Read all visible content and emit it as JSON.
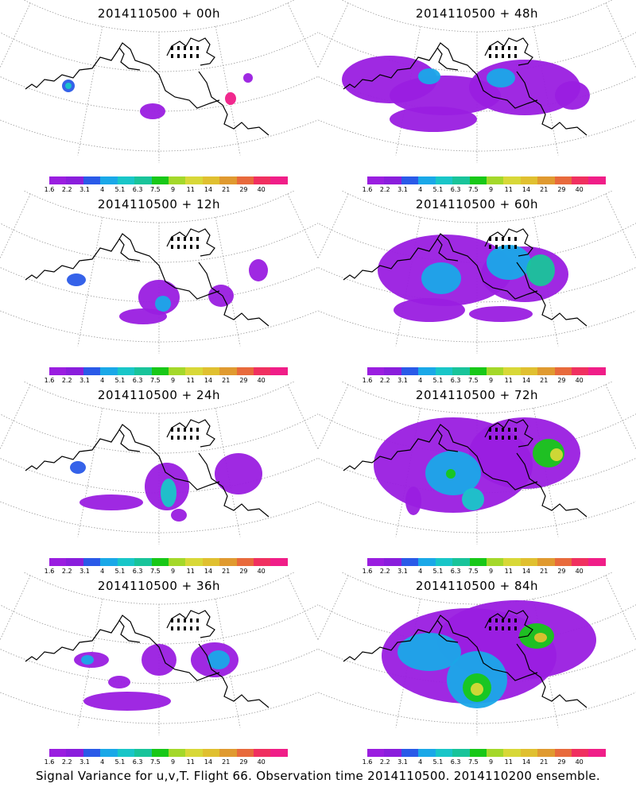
{
  "panels": [
    {
      "title": "2014110500 + 00h"
    },
    {
      "title": "2014110500 + 48h"
    },
    {
      "title": "2014110500 + 12h"
    },
    {
      "title": "2014110500 + 60h"
    },
    {
      "title": "2014110500 + 24h"
    },
    {
      "title": "2014110500 + 72h"
    },
    {
      "title": "2014110500 + 36h"
    },
    {
      "title": "2014110500 + 84h"
    }
  ],
  "colorbar": {
    "colors": [
      "#9a1ee0",
      "#8a1edc",
      "#2a5ae8",
      "#1aa8e8",
      "#19c6c8",
      "#19c49a",
      "#18c818",
      "#a4d82a",
      "#d8d838",
      "#e0c030",
      "#e09a30",
      "#e86a3c",
      "#f03060",
      "#f01e88"
    ],
    "labels": [
      "1.6",
      "2.2",
      "3.1",
      "4",
      "5.1",
      "6.3",
      "7.5",
      "9",
      "11",
      "14",
      "21",
      "29",
      "40"
    ]
  },
  "caption": "Signal Variance for u,v,T. Flight 66. Observation time 2014110500. 2014110200 ensemble."
}
